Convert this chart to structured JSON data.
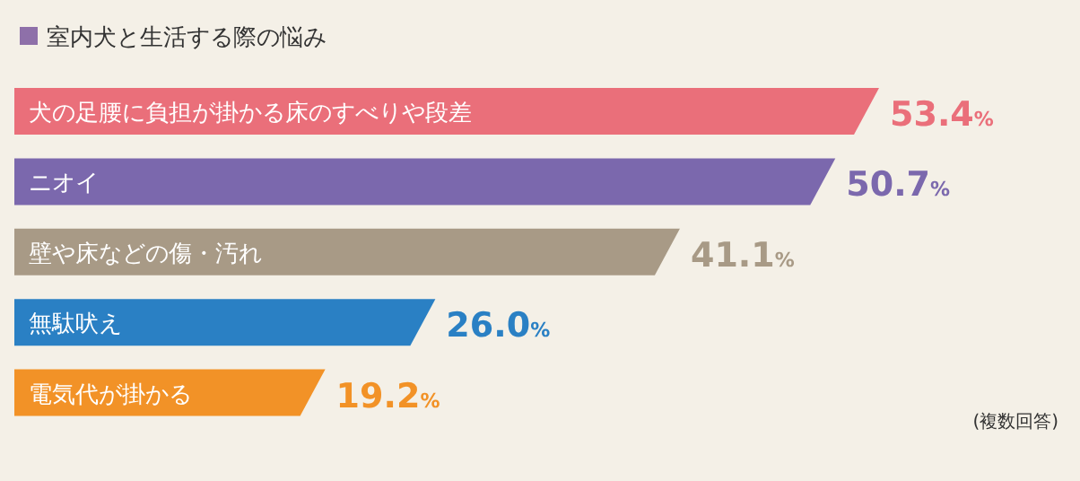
{
  "chart_data": {
    "type": "bar",
    "orientation": "horizontal",
    "title": "室内犬と生活する際の悩み",
    "categories": [
      "犬の足腰に負担が掛かる床のすべりや段差",
      "ニオイ",
      "壁や床などの傷・汚れ",
      "無駄吠え",
      "電気代が掛かる"
    ],
    "values": [
      53.4,
      50.7,
      41.1,
      26.0,
      19.2
    ],
    "value_labels": [
      "53.4%",
      "50.7%",
      "41.1%",
      "26.0%",
      "19.2%"
    ],
    "colors": [
      "#ea6f7a",
      "#7b68ad",
      "#a89a86",
      "#2a80c4",
      "#f29227"
    ],
    "annotations": [
      "(複数回答)"
    ]
  }
}
